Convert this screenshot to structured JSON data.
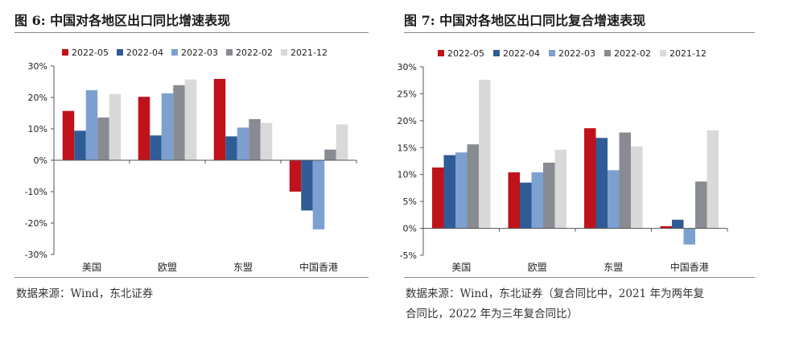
{
  "colors": {
    "2022-05": "#c0121b",
    "2022-04": "#2f5c96",
    "2022-03": "#7ca0d0",
    "2022-02": "#888b92",
    "2021-12": "#d9d9d9"
  },
  "left": {
    "title": "图  6:  中国对各地区出口同比增速表现",
    "source": "数据来源：Wind，东北证券"
  },
  "right": {
    "title": "图  7:  中国对各地区出口同比复合增速表现",
    "source_line1": "数据来源：Wind，东北证券（复合同比中，2021 年为两年复",
    "source_line2": "合同比，2022 年为三年复合同比）"
  },
  "chart_data": [
    {
      "type": "bar",
      "categories": [
        "美国",
        "欧盟",
        "东盟",
        "中国香港"
      ],
      "ylim": [
        -30,
        30
      ],
      "yticks": [
        -30,
        -20,
        -10,
        0,
        10,
        20,
        30
      ],
      "ytick_labels": [
        "-30%",
        "-20%",
        "-10%",
        "0%",
        "10%",
        "20%",
        "30%"
      ],
      "legend_position": "top",
      "series": [
        {
          "name": "2022-05",
          "values": [
            15.7,
            20.2,
            25.9,
            -10.0
          ]
        },
        {
          "name": "2022-04",
          "values": [
            9.4,
            7.9,
            7.6,
            -16.0
          ]
        },
        {
          "name": "2022-03",
          "values": [
            22.3,
            21.3,
            10.4,
            -22.0
          ]
        },
        {
          "name": "2022-02",
          "values": [
            13.6,
            23.9,
            13.1,
            3.4
          ]
        },
        {
          "name": "2021-12",
          "values": [
            21.1,
            25.7,
            11.9,
            11.4
          ]
        }
      ]
    },
    {
      "type": "bar",
      "categories": [
        "美国",
        "欧盟",
        "东盟",
        "中国香港"
      ],
      "ylim": [
        -5,
        30
      ],
      "yticks": [
        -5,
        0,
        5,
        10,
        15,
        20,
        25,
        30
      ],
      "ytick_labels": [
        "-5%",
        "0%",
        "5%",
        "10%",
        "15%",
        "20%",
        "25%",
        "30%"
      ],
      "legend_position": "top",
      "series": [
        {
          "name": "2022-05",
          "values": [
            11.3,
            10.4,
            18.6,
            0.4
          ]
        },
        {
          "name": "2022-04",
          "values": [
            13.6,
            8.5,
            16.8,
            1.6
          ]
        },
        {
          "name": "2022-03",
          "values": [
            14.1,
            10.4,
            10.8,
            -3.0
          ]
        },
        {
          "name": "2022-02",
          "values": [
            15.6,
            12.2,
            17.8,
            8.7
          ]
        },
        {
          "name": "2021-12",
          "values": [
            27.6,
            14.6,
            15.2,
            18.2
          ]
        }
      ]
    }
  ]
}
